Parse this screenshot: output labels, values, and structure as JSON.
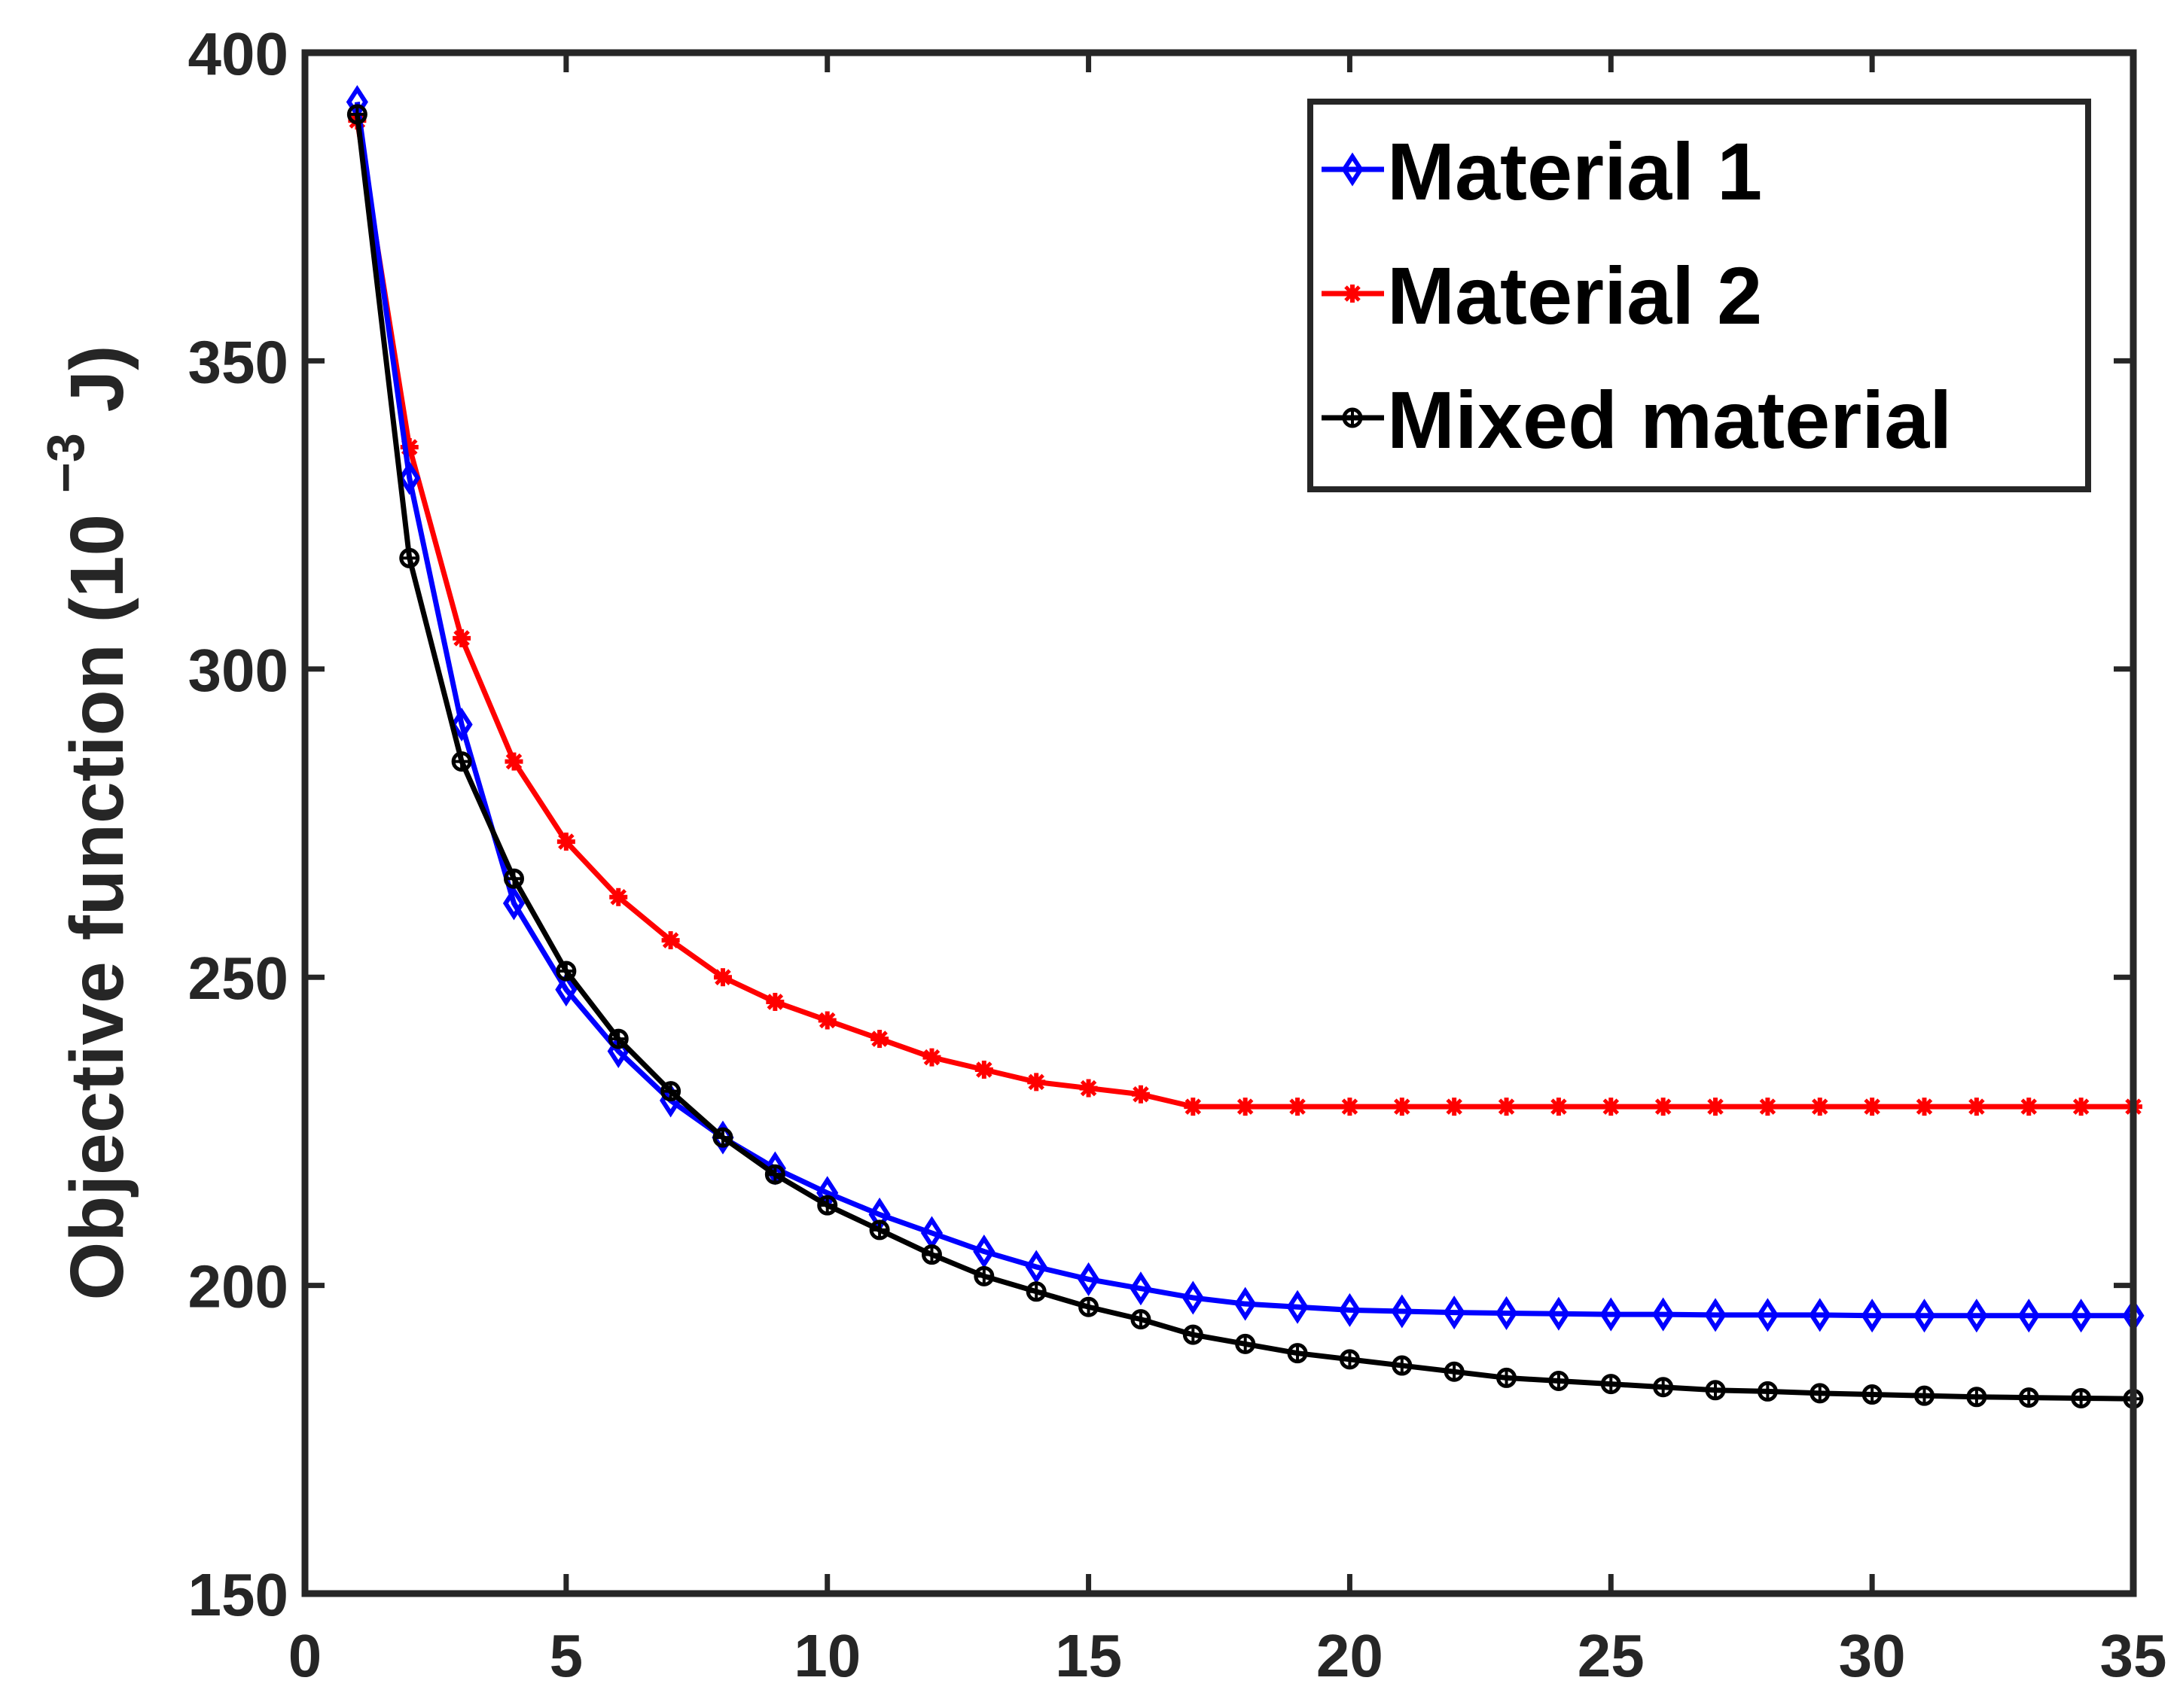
{
  "chart_data": {
    "type": "line",
    "title": "",
    "xlabel": "",
    "ylabel": "Objective function",
    "ylabel_unit_open": "(10",
    "ylabel_unit_exponent": "−3",
    "ylabel_unit_close": "J)",
    "xlim": [
      0,
      35
    ],
    "ylim": [
      150,
      400
    ],
    "xticks": [
      0,
      5,
      10,
      15,
      20,
      25,
      30,
      35
    ],
    "yticks": [
      150,
      200,
      250,
      300,
      350,
      400
    ],
    "grid": false,
    "legend_position": "top-right",
    "x": [
      1,
      2,
      3,
      4,
      5,
      6,
      7,
      8,
      9,
      10,
      11,
      12,
      13,
      14,
      15,
      16,
      17,
      18,
      19,
      20,
      21,
      22,
      23,
      24,
      25,
      26,
      27,
      28,
      29,
      30,
      31,
      32,
      33,
      34,
      35
    ],
    "series": [
      {
        "name": "Material 1",
        "color": "#0000ff",
        "marker": "diamond",
        "values": [
          392,
          331,
          291,
          262,
          248,
          238,
          230,
          224,
          219,
          215,
          211.5,
          208.5,
          205.5,
          203,
          201,
          199.5,
          198,
          197,
          196.5,
          196,
          195.8,
          195.6,
          195.5,
          195.4,
          195.3,
          195.3,
          195.2,
          195.2,
          195.2,
          195.1,
          195.1,
          195.1,
          195.1,
          195.1,
          195.1
        ]
      },
      {
        "name": "Material 2",
        "color": "#ff0000",
        "marker": "star",
        "values": [
          389,
          336,
          305,
          285,
          272,
          263,
          256,
          250,
          246,
          243,
          240,
          237,
          235,
          233,
          232,
          231,
          229,
          229,
          229,
          229,
          229,
          229,
          229,
          229,
          229,
          229,
          229,
          229,
          229,
          229,
          229,
          229,
          229,
          229,
          229
        ]
      },
      {
        "name": "Mixed material",
        "color": "#000000",
        "marker": "circle-plus",
        "values": [
          390,
          318,
          285,
          266,
          251,
          240,
          231.5,
          224,
          218,
          213,
          209,
          205,
          201.5,
          199,
          196.5,
          194.5,
          192,
          190.5,
          189,
          188,
          187,
          186,
          185,
          184.5,
          184,
          183.5,
          183,
          182.8,
          182.5,
          182.3,
          182.1,
          181.9,
          181.8,
          181.7,
          181.6
        ]
      }
    ]
  }
}
